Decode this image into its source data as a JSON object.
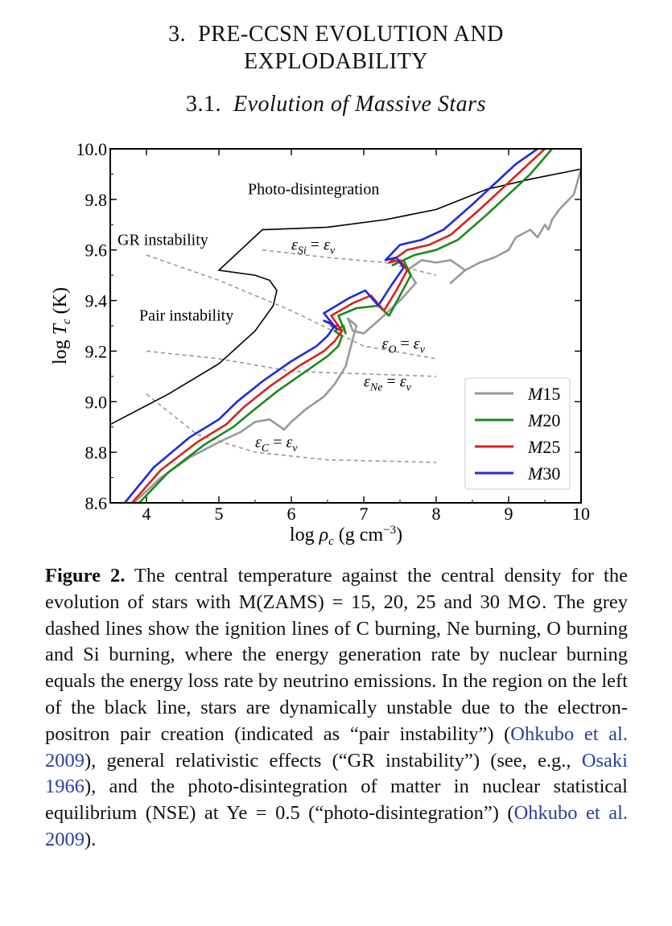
{
  "section": {
    "number": "3.",
    "title_line1": "PRE-CCSN EVOLUTION AND",
    "title_line2": "EXPLODABILITY"
  },
  "subsection": {
    "number": "3.1.",
    "title": "Evolution of Massive Stars"
  },
  "chart_data": {
    "type": "line",
    "xlabel": "log ρc (g cm−3)",
    "ylabel": "log Tc (K)",
    "xlim": [
      3.5,
      10
    ],
    "ylim": [
      8.6,
      10.0
    ],
    "xticks": [
      "4",
      "5",
      "6",
      "7",
      "8",
      "9",
      "10"
    ],
    "yticks": [
      "8.6",
      "8.8",
      "9.0",
      "9.2",
      "9.4",
      "9.6",
      "9.8",
      "10.0"
    ],
    "legend_position": "bottom-right",
    "annotations": [
      {
        "text": "Photo-disintegration",
        "x": 5.4,
        "y": 9.82
      },
      {
        "text": "GR instability",
        "x": 3.6,
        "y": 9.62
      },
      {
        "text": "Pair instability",
        "x": 3.9,
        "y": 9.32
      },
      {
        "text": "εSi = εν",
        "x": 6.0,
        "y": 9.6
      },
      {
        "text": "εO = εν",
        "x": 7.25,
        "y": 9.21
      },
      {
        "text": "εNe = εν",
        "x": 7.0,
        "y": 9.06
      },
      {
        "text": "εC = εν",
        "x": 5.5,
        "y": 8.82
      }
    ],
    "series": [
      {
        "name": "M15",
        "color": "#999999",
        "x": [
          3.75,
          4.2,
          4.6,
          5.0,
          5.3,
          5.5,
          5.7,
          5.9,
          6.0,
          6.2,
          6.45,
          6.6,
          6.75,
          6.85,
          6.9,
          6.78,
          6.85,
          7.0,
          7.2,
          7.5,
          7.72,
          7.6,
          7.8,
          8.0,
          8.2,
          8.4,
          8.2,
          8.4,
          8.6,
          8.8,
          9.0,
          9.1,
          9.3,
          9.4,
          9.5,
          9.55,
          9.6,
          9.7,
          9.9,
          10.0
        ],
        "y": [
          8.58,
          8.7,
          8.78,
          8.84,
          8.88,
          8.92,
          8.93,
          8.89,
          8.92,
          8.97,
          9.02,
          9.07,
          9.14,
          9.25,
          9.3,
          9.33,
          9.28,
          9.27,
          9.32,
          9.4,
          9.47,
          9.52,
          9.56,
          9.55,
          9.56,
          9.52,
          9.47,
          9.52,
          9.55,
          9.57,
          9.6,
          9.65,
          9.68,
          9.65,
          9.7,
          9.68,
          9.72,
          9.76,
          9.82,
          9.92
        ]
      },
      {
        "name": "M20",
        "color": "#1a8a1a",
        "x": [
          3.9,
          4.3,
          4.8,
          5.2,
          5.45,
          5.8,
          6.2,
          6.5,
          6.65,
          6.7,
          6.6,
          6.72,
          6.75,
          6.65,
          6.9,
          7.2,
          7.35,
          7.5,
          7.65,
          7.55,
          7.4,
          7.7,
          8.0,
          8.3,
          8.7,
          9.0,
          9.3,
          9.6
        ],
        "y": [
          8.6,
          8.72,
          8.83,
          8.9,
          8.96,
          9.04,
          9.12,
          9.18,
          9.22,
          9.26,
          9.28,
          9.3,
          9.27,
          9.34,
          9.37,
          9.38,
          9.34,
          9.42,
          9.5,
          9.56,
          9.54,
          9.58,
          9.6,
          9.64,
          9.74,
          9.82,
          9.9,
          10.0
        ]
      },
      {
        "name": "M25",
        "color": "#dd1f1f",
        "x": [
          3.8,
          4.2,
          4.7,
          5.1,
          5.35,
          5.7,
          6.1,
          6.45,
          6.6,
          6.7,
          6.55,
          6.65,
          6.7,
          6.55,
          6.85,
          7.1,
          7.28,
          7.45,
          7.6,
          7.5,
          7.35,
          7.6,
          7.9,
          8.2,
          8.6,
          8.9,
          9.2,
          9.5
        ],
        "y": [
          8.6,
          8.73,
          8.84,
          8.91,
          8.98,
          9.06,
          9.14,
          9.2,
          9.24,
          9.28,
          9.3,
          9.3,
          9.28,
          9.34,
          9.39,
          9.42,
          9.36,
          9.44,
          9.52,
          9.56,
          9.55,
          9.6,
          9.62,
          9.66,
          9.76,
          9.84,
          9.92,
          10.0
        ]
      },
      {
        "name": "M30",
        "color": "#1f2bdd",
        "x": [
          3.7,
          4.1,
          4.6,
          5.0,
          5.25,
          5.6,
          6.0,
          6.35,
          6.5,
          6.6,
          6.45,
          6.55,
          6.62,
          6.45,
          6.8,
          7.02,
          7.2,
          7.38,
          7.55,
          7.45,
          7.3,
          7.5,
          7.8,
          8.1,
          8.5,
          8.8,
          9.1,
          9.4
        ],
        "y": [
          8.6,
          8.74,
          8.86,
          8.93,
          9.0,
          9.08,
          9.16,
          9.22,
          9.26,
          9.3,
          9.32,
          9.31,
          9.29,
          9.35,
          9.41,
          9.44,
          9.38,
          9.46,
          9.53,
          9.57,
          9.56,
          9.62,
          9.64,
          9.68,
          9.78,
          9.86,
          9.94,
          10.0
        ]
      }
    ],
    "boundary_line": {
      "x": [
        3.5,
        4.3,
        5.0,
        5.5,
        5.75,
        5.8,
        5.7,
        5.5,
        5.0,
        5.6,
        6.5,
        7.3,
        8.0,
        8.7,
        9.3,
        10.0
      ],
      "y": [
        8.91,
        9.03,
        9.15,
        9.28,
        9.38,
        9.44,
        9.48,
        9.5,
        9.52,
        9.68,
        9.69,
        9.72,
        9.76,
        9.84,
        9.88,
        9.92
      ]
    },
    "ignition_lines": [
      {
        "label": "εSi = εν",
        "x": [
          5.6,
          6.5,
          7.3,
          8.0
        ],
        "y": [
          9.6,
          9.57,
          9.55,
          9.5
        ]
      },
      {
        "label": "εO = εν",
        "x": [
          4.0,
          5.0,
          6.0,
          7.0,
          8.0
        ],
        "y": [
          9.58,
          9.48,
          9.36,
          9.22,
          9.17
        ]
      },
      {
        "label": "εNe = εν",
        "x": [
          4.0,
          5.0,
          6.0,
          7.0,
          8.0
        ],
        "y": [
          9.2,
          9.17,
          9.12,
          9.11,
          9.1
        ]
      },
      {
        "label": "εC = εν",
        "x": [
          4.0,
          4.7,
          5.5,
          6.5,
          8.0
        ],
        "y": [
          9.03,
          8.87,
          8.8,
          8.77,
          8.76
        ]
      }
    ]
  },
  "caption": {
    "label": "Figure 2.",
    "text_a": " The central temperature against the central density for the evolution of stars with M(ZAMS) = 15, 20, 25 and 30 M⊙.  The grey dashed lines show the ignition lines of C burning, Ne burning, O burning and Si burning, where the energy generation rate by nuclear burning equals the energy loss rate by neutrino emissions.  In the region on the left of the black line, stars are dynamically unstable due to the electron-positron pair creation (indicated as “pair instability”) (",
    "cite1": "Ohkubo et al. 2009",
    "text_b": "), general relativistic effects (“GR instability”) (see, e.g., ",
    "cite2": "Osaki 1966",
    "text_c": "), and the photo-disintegration of matter in nuclear statistical equilibrium (NSE) at Ye = 0.5 (“photo-disintegration”) (",
    "cite3": "Ohkubo et al. 2009",
    "text_d": ")."
  }
}
